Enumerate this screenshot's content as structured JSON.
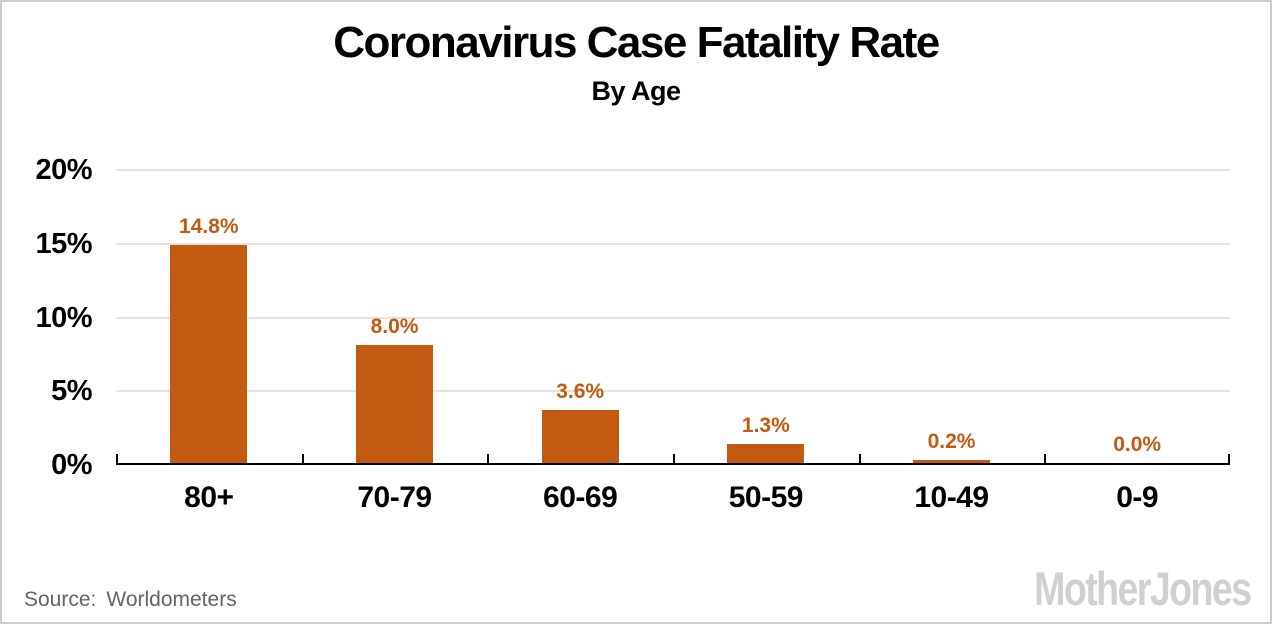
{
  "chart_data": {
    "type": "bar",
    "title": "Coronavirus Case Fatality Rate",
    "subtitle": "By Age",
    "categories": [
      "80+",
      "70-79",
      "60-69",
      "50-59",
      "10-49",
      "0-9"
    ],
    "values": [
      14.8,
      8.0,
      3.6,
      1.3,
      0.2,
      0.0
    ],
    "value_labels": [
      "14.8%",
      "8.0%",
      "3.6%",
      "1.3%",
      "0.2%",
      "0.0%"
    ],
    "xlabel": "",
    "ylabel": "",
    "ylim": [
      0,
      20
    ],
    "yticks": [
      0,
      5,
      10,
      15,
      20
    ],
    "ytick_labels": [
      "0%",
      "5%",
      "10%",
      "15%",
      "20%"
    ],
    "grid": true,
    "legend": false
  },
  "footer": {
    "source_label": "Source:",
    "source_value": "Worldometers",
    "brand": "MotherJones"
  },
  "colors": {
    "bar": "#c25a12",
    "value_label": "#c25a12",
    "gridline": "#e3e3e3",
    "axis": "#000000",
    "text": "#000000",
    "source_text": "#646464",
    "brand_logo": "#d0d0d0",
    "background": "#ffffff",
    "border": "#cccccc"
  }
}
